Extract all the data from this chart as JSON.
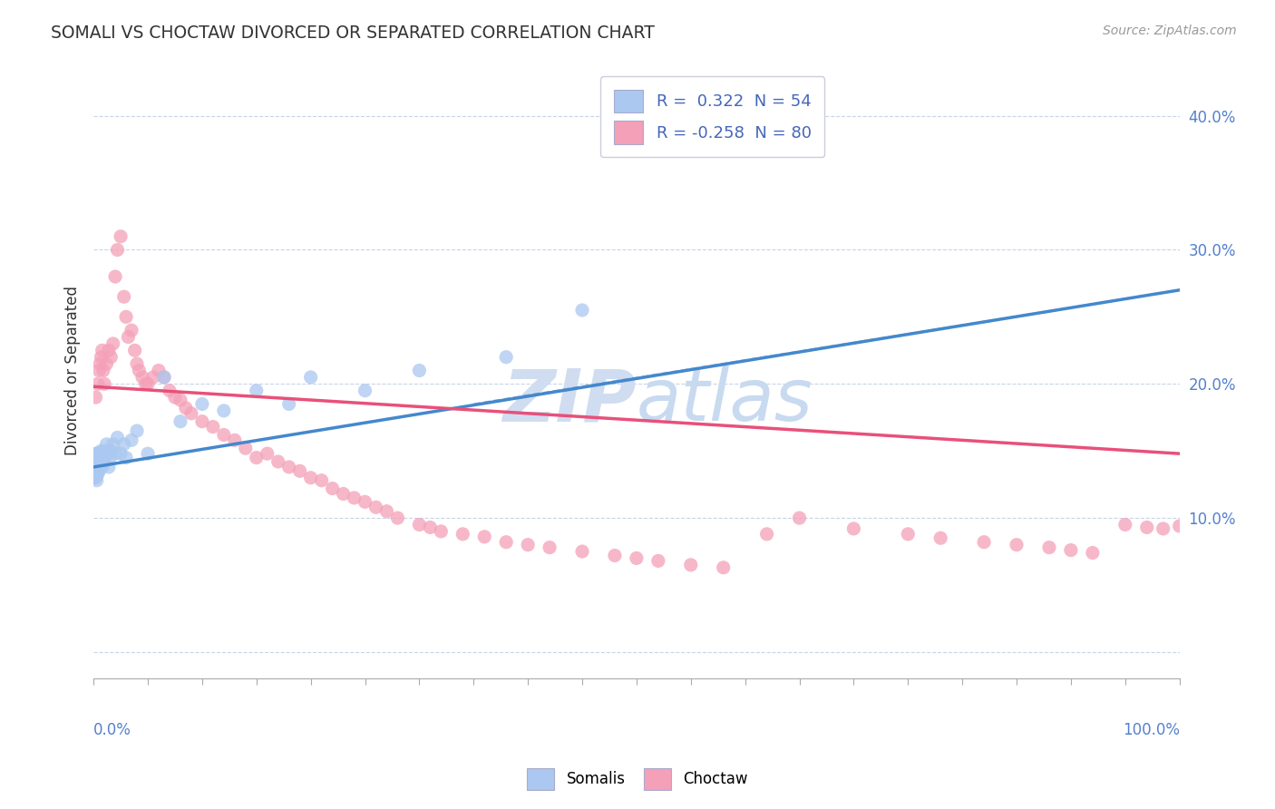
{
  "title": "SOMALI VS CHOCTAW DIVORCED OR SEPARATED CORRELATION CHART",
  "source_text": "Source: ZipAtlas.com",
  "ylabel": "Divorced or Separated",
  "xlim": [
    0,
    1.0
  ],
  "ylim": [
    -0.02,
    0.44
  ],
  "somali_R": 0.322,
  "somali_N": 54,
  "choctaw_R": -0.258,
  "choctaw_N": 80,
  "somali_color": "#aac8f0",
  "choctaw_color": "#f4a0b8",
  "somali_line_color": "#4488cc",
  "choctaw_line_color": "#e8507a",
  "background_color": "#ffffff",
  "grid_color": "#c8d4e8",
  "watermark_color": "#d0ddf0",
  "yticks": [
    0.0,
    0.1,
    0.2,
    0.3,
    0.4
  ],
  "ytick_labels": [
    "",
    "10.0%",
    "20.0%",
    "30.0%",
    "40.0%"
  ],
  "somali_x": [
    0.001,
    0.001,
    0.001,
    0.002,
    0.002,
    0.002,
    0.002,
    0.003,
    0.003,
    0.003,
    0.003,
    0.004,
    0.004,
    0.004,
    0.004,
    0.005,
    0.005,
    0.005,
    0.006,
    0.006,
    0.006,
    0.007,
    0.007,
    0.008,
    0.008,
    0.009,
    0.01,
    0.01,
    0.011,
    0.012,
    0.013,
    0.014,
    0.015,
    0.016,
    0.018,
    0.02,
    0.022,
    0.025,
    0.028,
    0.03,
    0.035,
    0.04,
    0.05,
    0.065,
    0.08,
    0.1,
    0.12,
    0.15,
    0.18,
    0.2,
    0.25,
    0.3,
    0.38,
    0.45
  ],
  "somali_y": [
    0.13,
    0.14,
    0.135,
    0.138,
    0.143,
    0.148,
    0.13,
    0.132,
    0.138,
    0.145,
    0.128,
    0.133,
    0.14,
    0.148,
    0.135,
    0.142,
    0.148,
    0.135,
    0.14,
    0.145,
    0.138,
    0.142,
    0.15,
    0.145,
    0.138,
    0.148,
    0.142,
    0.15,
    0.148,
    0.155,
    0.148,
    0.138,
    0.145,
    0.15,
    0.155,
    0.148,
    0.16,
    0.148,
    0.155,
    0.145,
    0.158,
    0.165,
    0.148,
    0.205,
    0.172,
    0.185,
    0.18,
    0.195,
    0.185,
    0.205,
    0.195,
    0.21,
    0.22,
    0.255
  ],
  "choctaw_x": [
    0.002,
    0.004,
    0.005,
    0.006,
    0.007,
    0.008,
    0.009,
    0.01,
    0.012,
    0.014,
    0.016,
    0.018,
    0.02,
    0.022,
    0.025,
    0.028,
    0.03,
    0.032,
    0.035,
    0.038,
    0.04,
    0.042,
    0.045,
    0.048,
    0.05,
    0.055,
    0.06,
    0.065,
    0.07,
    0.075,
    0.08,
    0.085,
    0.09,
    0.1,
    0.11,
    0.12,
    0.13,
    0.14,
    0.15,
    0.16,
    0.17,
    0.18,
    0.19,
    0.2,
    0.21,
    0.22,
    0.23,
    0.24,
    0.25,
    0.26,
    0.27,
    0.28,
    0.3,
    0.31,
    0.32,
    0.34,
    0.36,
    0.38,
    0.4,
    0.42,
    0.45,
    0.48,
    0.5,
    0.52,
    0.55,
    0.58,
    0.62,
    0.65,
    0.7,
    0.75,
    0.78,
    0.82,
    0.85,
    0.88,
    0.9,
    0.92,
    0.95,
    0.97,
    0.985,
    1.0
  ],
  "choctaw_y": [
    0.19,
    0.2,
    0.21,
    0.215,
    0.22,
    0.225,
    0.21,
    0.2,
    0.215,
    0.225,
    0.22,
    0.23,
    0.28,
    0.3,
    0.31,
    0.265,
    0.25,
    0.235,
    0.24,
    0.225,
    0.215,
    0.21,
    0.205,
    0.2,
    0.2,
    0.205,
    0.21,
    0.205,
    0.195,
    0.19,
    0.188,
    0.182,
    0.178,
    0.172,
    0.168,
    0.162,
    0.158,
    0.152,
    0.145,
    0.148,
    0.142,
    0.138,
    0.135,
    0.13,
    0.128,
    0.122,
    0.118,
    0.115,
    0.112,
    0.108,
    0.105,
    0.1,
    0.095,
    0.093,
    0.09,
    0.088,
    0.086,
    0.082,
    0.08,
    0.078,
    0.075,
    0.072,
    0.07,
    0.068,
    0.065,
    0.063,
    0.088,
    0.1,
    0.092,
    0.088,
    0.085,
    0.082,
    0.08,
    0.078,
    0.076,
    0.074,
    0.095,
    0.093,
    0.092,
    0.094
  ],
  "somali_line_start_x": 0.0,
  "somali_line_end_x": 1.0,
  "choctaw_line_start_x": 0.0,
  "choctaw_line_end_x": 1.0,
  "somali_line_start_y": 0.138,
  "somali_line_end_y": 0.27,
  "choctaw_line_start_y": 0.198,
  "choctaw_line_end_y": 0.148
}
